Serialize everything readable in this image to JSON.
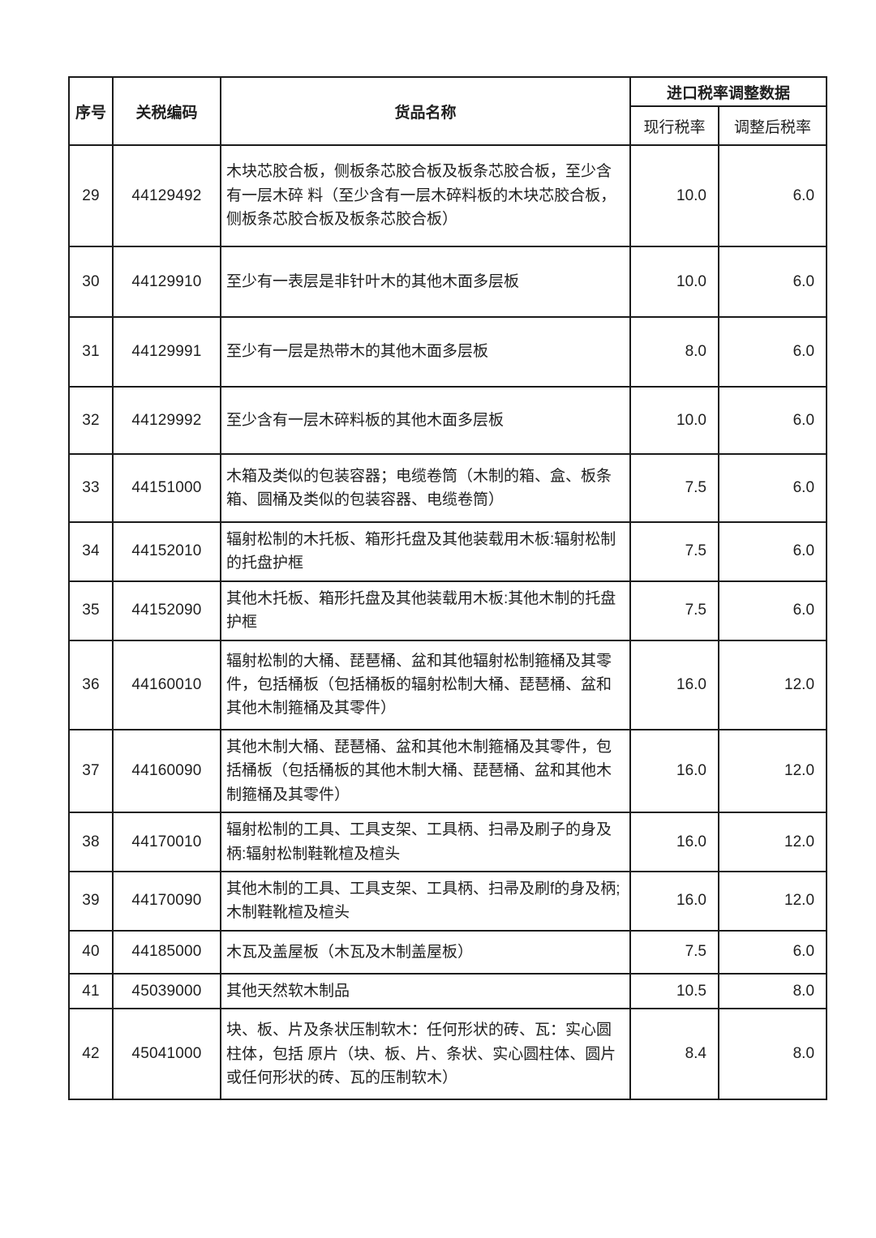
{
  "table": {
    "headers": {
      "col_index": "序号",
      "col_code": "关税编码",
      "col_name": "货品名称",
      "group_import": "进口税率调整数据",
      "col_current": "现行税率",
      "col_adjusted": "调整后税率"
    },
    "rows": [
      {
        "index": "29",
        "code": "44129492",
        "name": "木块芯胶合板，侧板条芯胶合板及板条芯胶合板，至少含有一层木碎 料（至少含有一层木碎料板的木块芯胶合板，侧板条芯胶合板及板条芯胶合板）",
        "current": "10.0",
        "adjusted": "6.0"
      },
      {
        "index": "30",
        "code": "44129910",
        "name": "至少有一表层是非针叶木的其他木面多层板",
        "current": "10.0",
        "adjusted": "6.0"
      },
      {
        "index": "31",
        "code": "44129991",
        "name": "至少有一层是热带木的其他木面多层板",
        "current": "8.0",
        "adjusted": "6.0"
      },
      {
        "index": "32",
        "code": "44129992",
        "name": "至少含有一层木碎料板的其他木面多层板",
        "current": "10.0",
        "adjusted": "6.0"
      },
      {
        "index": "33",
        "code": "44151000",
        "name": "木箱及类似的包装容器；电缆卷筒（木制的箱、盒、板条箱、圆桶及类似的包装容器、电缆卷筒）",
        "current": "7.5",
        "adjusted": "6.0"
      },
      {
        "index": "34",
        "code": "44152010",
        "name": "辐射松制的木托板、箱形托盘及其他装载用木板:辐射松制的托盘护框",
        "current": "7.5",
        "adjusted": "6.0"
      },
      {
        "index": "35",
        "code": "44152090",
        "name": "其他木托板、箱形托盘及其他装载用木板:其他木制的托盘护框",
        "current": "7.5",
        "adjusted": "6.0"
      },
      {
        "index": "36",
        "code": "44160010",
        "name": "辐射松制的大桶、琵琶桶、盆和其他辐射松制箍桶及其零件，包括桶板（包括桶板的辐射松制大桶、琵琶桶、盆和其他木制箍桶及其零件）",
        "current": "16.0",
        "adjusted": "12.0"
      },
      {
        "index": "37",
        "code": "44160090",
        "name": "其他木制大桶、琵琶桶、盆和其他木制箍桶及其零件，包括桶板（包括桶板的其他木制大桶、琵琶桶、盆和其他木制箍桶及其零件）",
        "current": "16.0",
        "adjusted": "12.0"
      },
      {
        "index": "38",
        "code": "44170010",
        "name": "辐射松制的工具、工具支架、工具柄、扫帚及刷子的身及柄:辐射松制鞋靴楦及楦头",
        "current": "16.0",
        "adjusted": "12.0"
      },
      {
        "index": "39",
        "code": "44170090",
        "name": "其他木制的工具、工具支架、工具柄、扫帚及刷f的身及柄;木制鞋靴楦及楦头",
        "current": "16.0",
        "adjusted": "12.0"
      },
      {
        "index": "40",
        "code": "44185000",
        "name": "木瓦及盖屋板（木瓦及木制盖屋板）",
        "current": "7.5",
        "adjusted": "6.0"
      },
      {
        "index": "41",
        "code": "45039000",
        "name": "其他天然软木制品",
        "current": "10.5",
        "adjusted": "8.0"
      },
      {
        "index": "42",
        "code": "45041000",
        "name": "块、板、片及条状压制软木：任何形状的砖、瓦：实心圆柱体，包括 原片（块、板、片、条状、实心圆柱体、圆片或任何形状的砖、瓦的压制软木）",
        "current": "8.4",
        "adjusted": "8.0"
      }
    ]
  }
}
